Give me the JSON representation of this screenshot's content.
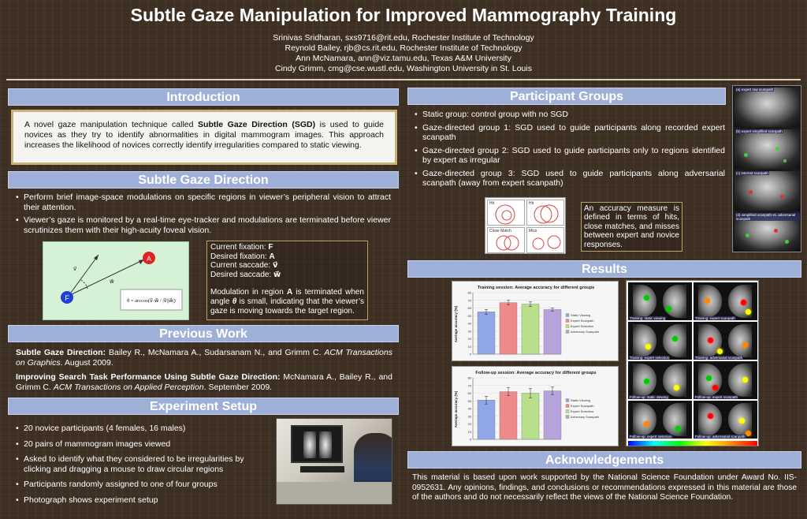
{
  "header": {
    "title": "Subtle Gaze Manipulation for Improved Mammography Training",
    "authors": [
      "Srinivas Sridharan, sxs9716@rit.edu, Rochester Institute of Technology",
      "Reynold Bailey, rjb@cs.rit.edu, Rochester Institute of Technology",
      "Ann McNamara, ann@viz.tamu.edu, Texas A&M University",
      "Cindy Grimm, cmg@cse.wustl.edu, Washington University in St. Louis"
    ]
  },
  "introduction": {
    "heading": "Introduction",
    "text_before": "A novel gaze manipulation technique called ",
    "text_bold": "Subtle Gaze Direction (SGD)",
    "text_after": " is used to guide novices as they try to identify abnormalities in digital mammogram images. This approach increases the likelihood of novices correctly identify irregularities compared to static viewing."
  },
  "sgd": {
    "heading": "Subtle Gaze Direction",
    "bullets": [
      "Perform brief image-space modulations on specific regions in viewer’s peripheral vision to attract their attention.",
      "Viewer’s gaze is monitored by a real-time eye-tracker and modulations are  terminated before viewer scrutinizes them with their high-acuity foveal vision."
    ],
    "diagram": {
      "label_a": "A",
      "label_f": "F",
      "vec_v": "v⃗",
      "vec_w": "w⃗",
      "formula": "θ = arccos(v⃗·w⃗ / |v⃗||w⃗|)"
    },
    "info": {
      "current_fixation_label": "Current fixation: ",
      "current_fixation_value": "F",
      "desired_fixation_label": "Desired fixation: ",
      "desired_fixation_value": "A",
      "current_saccade_label": "Current saccade: ",
      "current_saccade_value": "v⃗",
      "desired_saccade_label": "Desired saccade: ",
      "desired_saccade_value": "w⃗",
      "modulation_text_1": "Modulation in region ",
      "modulation_bold_1": "A",
      "modulation_text_2": " is terminated when angle ",
      "modulation_bold_2": "θ",
      "modulation_text_3": " is small, indicating that the viewer’s gaze is moving towards the target region."
    }
  },
  "previous_work": {
    "heading": "Previous Work",
    "refs": [
      {
        "title": "Subtle Gaze Direction:",
        "authors": " Bailey R., McNamara A., Sudarsanam N., and Grimm C. ",
        "venue": "ACM Transactions on Graphics",
        "date": ". August 2009."
      },
      {
        "title": "Improving Search Task Performance Using Subtle Gaze Direction:",
        "authors": " McNamara A., Bailey R., and Grimm C. ",
        "venue": "ACM Transactions on Applied Perception",
        "date": ". September 2009."
      }
    ]
  },
  "experiment": {
    "heading": "Experiment Setup",
    "bullets": [
      "20 novice participants (4 females, 16 males)",
      "20 pairs of mammogram images viewed",
      "Asked to identify what they considered to be irregularities by clicking and dragging a mouse to draw circular regions",
      "Participants randomly assigned to one of four groups",
      "Photograph shows experiment setup"
    ]
  },
  "participants": {
    "heading": "Participant Groups",
    "bullets": [
      "Static group: control group with no SGD",
      "Gaze-directed group 1: SGD used to guide participants along recorded expert scanpath",
      "Gaze-directed group 2: SGD used to guide participants only to regions identified by expert as irregular",
      "Gaze-directed group 3: SGD used to guide participants along adversarial scanpath (away from expert scanpath)"
    ],
    "accuracy_note": "An accuracy measure is defined in terms of hits, close matches, and misses between expert and novice responses.",
    "match_labels": [
      "Hit",
      "Hit",
      "Close Match",
      "Miss"
    ],
    "scanpath_tags": [
      "(a) expert raw scanpath",
      "(b) expert simplified scanpath",
      "(c) interest scanpath",
      "(d) simplified scanpath vs. adversarial scanpath"
    ]
  },
  "results": {
    "heading": "Results",
    "charts": [
      {
        "title": "Training session: Average accuracy for different groups",
        "ylabel": "Average accuracy (%)",
        "yticks": [
          "0",
          "10",
          "20",
          "30",
          "40",
          "50",
          "60",
          "70",
          "80"
        ],
        "ylim": [
          0,
          80
        ],
        "values": [
          55,
          67,
          65,
          58
        ],
        "errors": [
          3,
          3,
          3,
          2
        ],
        "legend": [
          "Static Viewing",
          "Expert Scanpath",
          "Expert Selection",
          "Adversary Scanpath"
        ]
      },
      {
        "title": "Follow-up session: Average accuracy for different groups",
        "ylabel": "Average accuracy (%)",
        "yticks": [
          "0",
          "10",
          "20",
          "30",
          "40",
          "50",
          "60",
          "70",
          "80"
        ],
        "ylim": [
          0,
          80
        ],
        "values": [
          51,
          62,
          60,
          63
        ],
        "errors": [
          5,
          5,
          6,
          5
        ],
        "legend": [
          "Static Viewing",
          "Expert Scanpath",
          "Expert Selection",
          "Adversary Scanpath"
        ]
      }
    ],
    "heatmap_tags": [
      "Training: static viewing",
      "Training: expert scanpath",
      "Training: expert selection",
      "Training: adversarial scanpath",
      "Follow-up: static viewing",
      "Follow-up: expert scanpath",
      "Follow-up: expert selection",
      "Follow-up: adversarial scanpath"
    ]
  },
  "acknowledgements": {
    "heading": "Acknowledgements",
    "text": "This material is based upon work supported by the National Science Foundation under Award No. IIS-0952631. Any opinions, findings, and conclusions or recommendations expressed in this material are those of the authors and do not necessarily reflect the views of the National Science Foundation."
  },
  "chart_data": [
    {
      "type": "bar",
      "title": "Training session: Average accuracy for different groups",
      "xlabel": "",
      "ylabel": "Average accuracy (%)",
      "ylim": [
        0,
        80
      ],
      "categories": [
        "Static Viewing",
        "Expert Scanpath",
        "Expert Selection",
        "Adversary Scanpath"
      ],
      "values": [
        55,
        67,
        65,
        58
      ],
      "colors": [
        "#8fa6e8",
        "#ef8a8a",
        "#b8e08a",
        "#b7a3dc"
      ],
      "legend": "right"
    },
    {
      "type": "bar",
      "title": "Follow-up session: Average accuracy for different groups",
      "xlabel": "",
      "ylabel": "Average accuracy (%)",
      "ylim": [
        0,
        80
      ],
      "categories": [
        "Static Viewing",
        "Expert Scanpath",
        "Expert Selection",
        "Adversary Scanpath"
      ],
      "values": [
        51,
        62,
        60,
        63
      ],
      "colors": [
        "#8fa6e8",
        "#ef8a8a",
        "#b8e08a",
        "#b7a3dc"
      ],
      "legend": "right"
    }
  ],
  "colors": {
    "section_header": "#9fb0d8",
    "bar_static": "#8fa6e8",
    "bar_expert_scanpath": "#ef8a8a",
    "bar_expert_selection": "#b8e08a",
    "bar_adversary": "#b7a3dc"
  }
}
